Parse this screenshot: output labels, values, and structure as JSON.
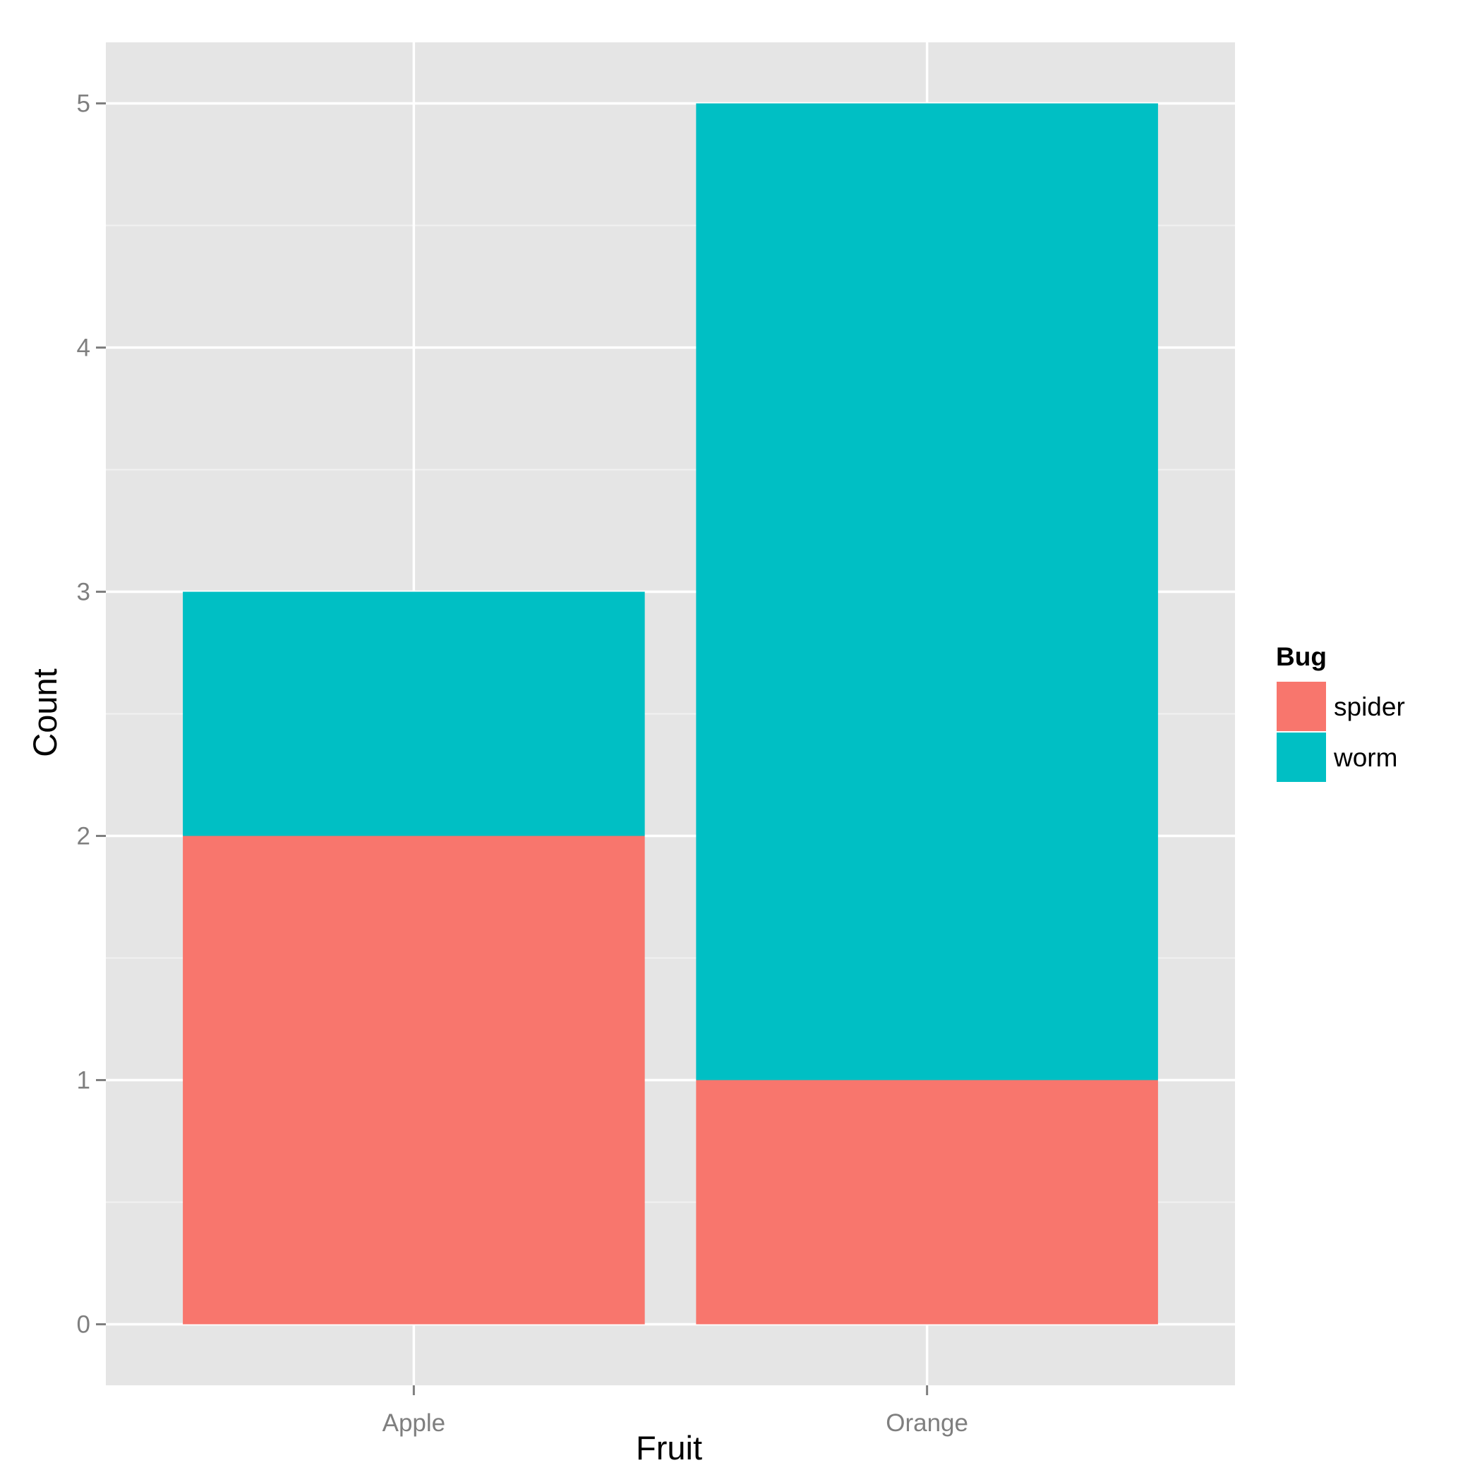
{
  "chart_data": {
    "type": "bar",
    "stacked": true,
    "categories": [
      "Apple",
      "Orange"
    ],
    "series": [
      {
        "name": "spider",
        "values": [
          2,
          1
        ],
        "color": "#F8766D"
      },
      {
        "name": "worm",
        "values": [
          1,
          4
        ],
        "color": "#00BFC4"
      }
    ],
    "xlabel": "Fruit",
    "ylabel": "Count",
    "ylim": [
      -0.25,
      5.25
    ],
    "yticks": [
      0,
      1,
      2,
      3,
      4,
      5
    ],
    "grid": true,
    "legend": {
      "title": "Bug",
      "position": "right"
    },
    "panel_background": "#E5E5E5",
    "grid_color": "#FFFFFF"
  }
}
